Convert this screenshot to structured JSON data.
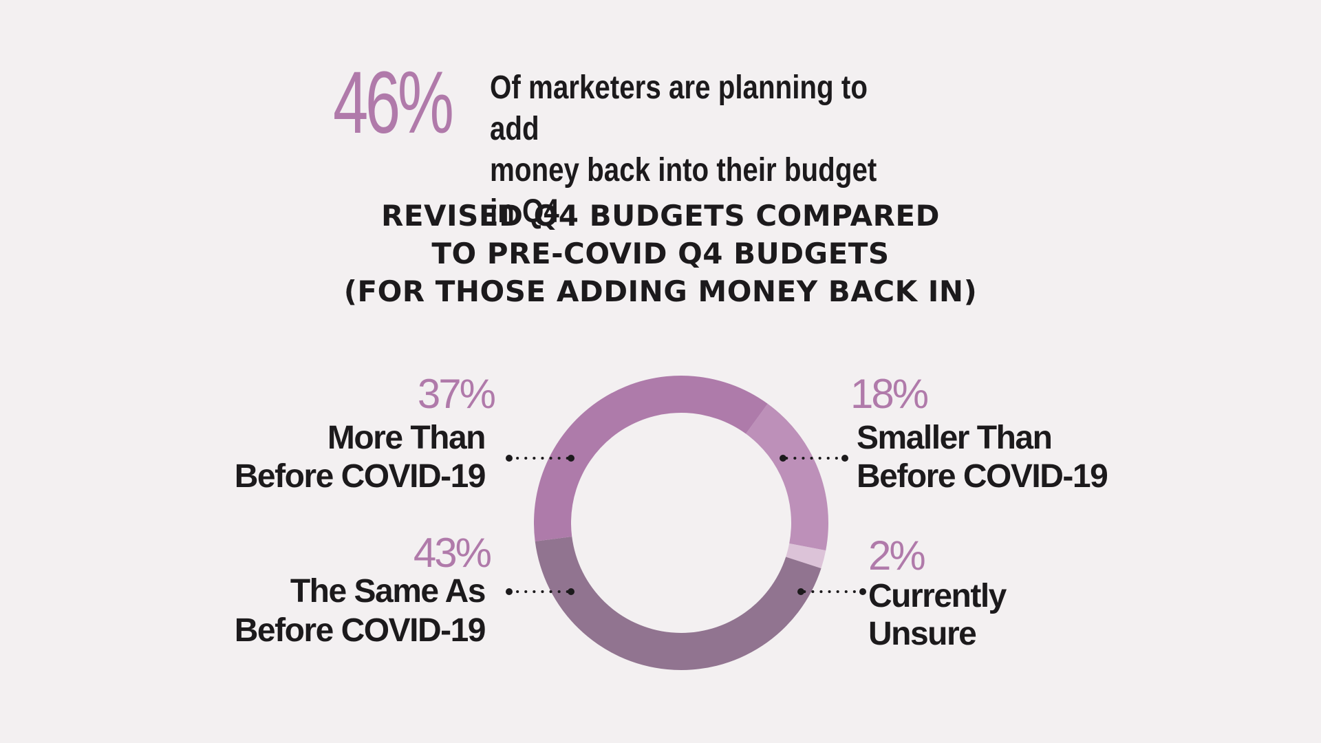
{
  "headline": {
    "stat": "46%",
    "text": "Of marketers are planning to add\nmoney back into their budget in Q4"
  },
  "colors": {
    "background": "#f3f0f1",
    "accent": "#b07aaa",
    "text": "#1c1a1c",
    "slice_more": "#ae7baa",
    "slice_smaller": "#bd90b9",
    "slice_unsure": "#dcc3d8",
    "slice_same": "#917490"
  },
  "chart_data": {
    "type": "pie",
    "title": "REVISED Q4 BUDGETS COMPARED\nTO PRE-COVID Q4 BUDGETS\n(FOR THOSE ADDING MONEY BACK IN)",
    "slices": [
      {
        "pct_label": "18%",
        "label_lines": [
          "Smaller Than",
          "Before COVID-19"
        ],
        "value": 18,
        "color": "#bd90b9"
      },
      {
        "pct_label": "2%",
        "label_lines": [
          "Currently",
          "Unsure"
        ],
        "value": 2,
        "color": "#dcc3d8"
      },
      {
        "pct_label": "43%",
        "label_lines": [
          "The Same As",
          "Before COVID-19"
        ],
        "value": 43,
        "color": "#917490"
      },
      {
        "pct_label": "37%",
        "label_lines": [
          "More Than",
          "Before COVID-19"
        ],
        "value": 37,
        "color": "#ae7baa"
      }
    ]
  }
}
